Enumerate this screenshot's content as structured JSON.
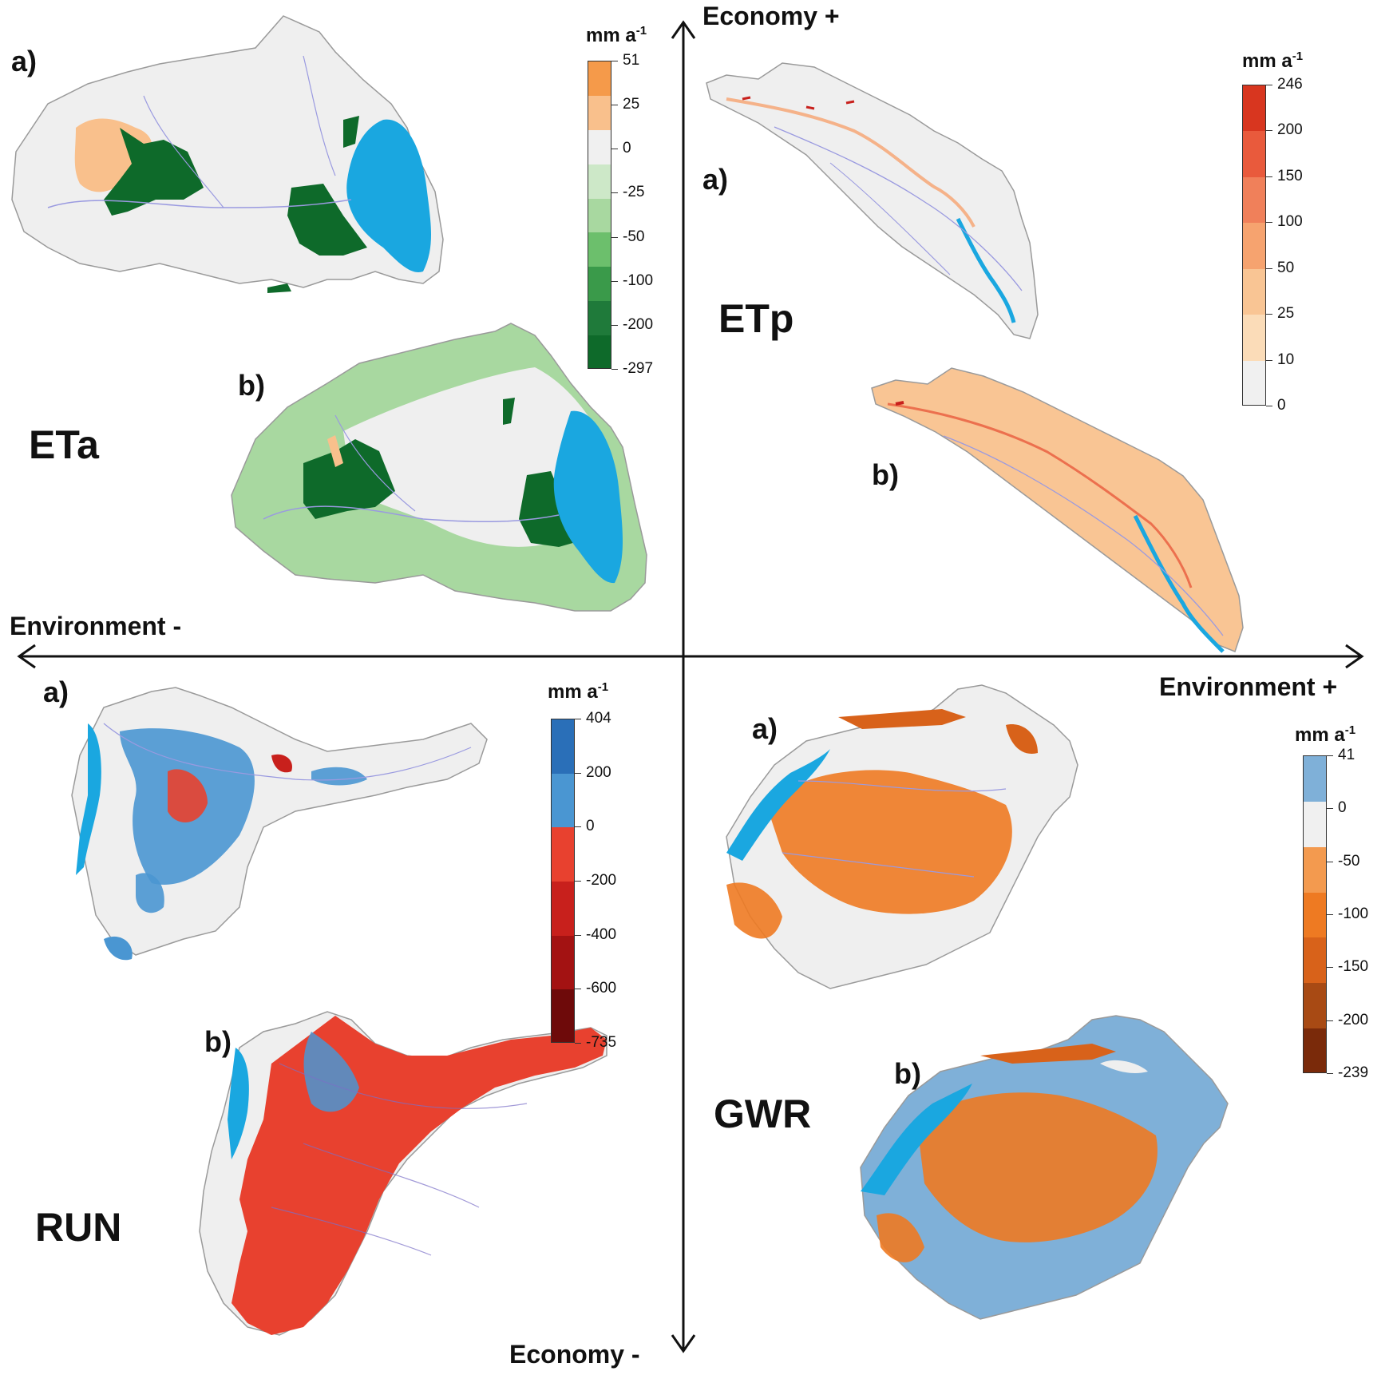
{
  "axes": {
    "top": "Economy +",
    "bottom": "Economy -",
    "left": "Environment -",
    "right": "Environment +"
  },
  "quadrants": {
    "eta": {
      "title": "ETa",
      "panel_a": "a)",
      "panel_b": "b)",
      "legend": {
        "unit": "mm a",
        "unit_exp": "-1",
        "colors": [
          "#f59a4a",
          "#f9c08c",
          "#f0f0f0",
          "#cde8c8",
          "#a8d8a0",
          "#6cbf6c",
          "#3a9a4a",
          "#1f7a3a",
          "#0e6a2a"
        ],
        "ticks": [
          "51",
          "25",
          "0",
          "-25",
          "-50",
          "-100",
          "-200",
          "-297"
        ]
      }
    },
    "etp": {
      "title": "ETp",
      "panel_a": "a)",
      "panel_b": "b)",
      "legend": {
        "unit": "mm a",
        "unit_exp": "-1",
        "colors": [
          "#d8361f",
          "#e95a3c",
          "#f0805a",
          "#f6a36f",
          "#f9c594",
          "#fbdcb8",
          "#f0f0f0"
        ],
        "ticks": [
          "246",
          "200",
          "150",
          "100",
          "50",
          "25",
          "10",
          "0"
        ]
      }
    },
    "run": {
      "title": "RUN",
      "panel_a": "a)",
      "panel_b": "b)",
      "legend": {
        "unit": "mm a",
        "unit_exp": "-1",
        "colors": [
          "#2a6fb8",
          "#4a96d2",
          "#e8412f",
          "#c8201c",
          "#a31212",
          "#6e0a0a"
        ],
        "ticks": [
          "404",
          "200",
          "0",
          "-200",
          "-400",
          "-600",
          "-735"
        ]
      }
    },
    "gwr": {
      "title": "GWR",
      "panel_a": "a)",
      "panel_b": "b)",
      "legend": {
        "unit": "mm a",
        "unit_exp": "-1",
        "colors": [
          "#7fb0d8",
          "#f0f0f0",
          "#f39a4f",
          "#ee7a22",
          "#d8621a",
          "#a84a14",
          "#7a2a0a"
        ],
        "ticks": [
          "41",
          "0",
          "-50",
          "-100",
          "-150",
          "-200",
          "-239"
        ]
      }
    }
  },
  "map_colors": {
    "basin": "#efefef",
    "outline": "#9a9a9a",
    "river": "#9a9ae0",
    "lake": "#1aa7e0"
  }
}
